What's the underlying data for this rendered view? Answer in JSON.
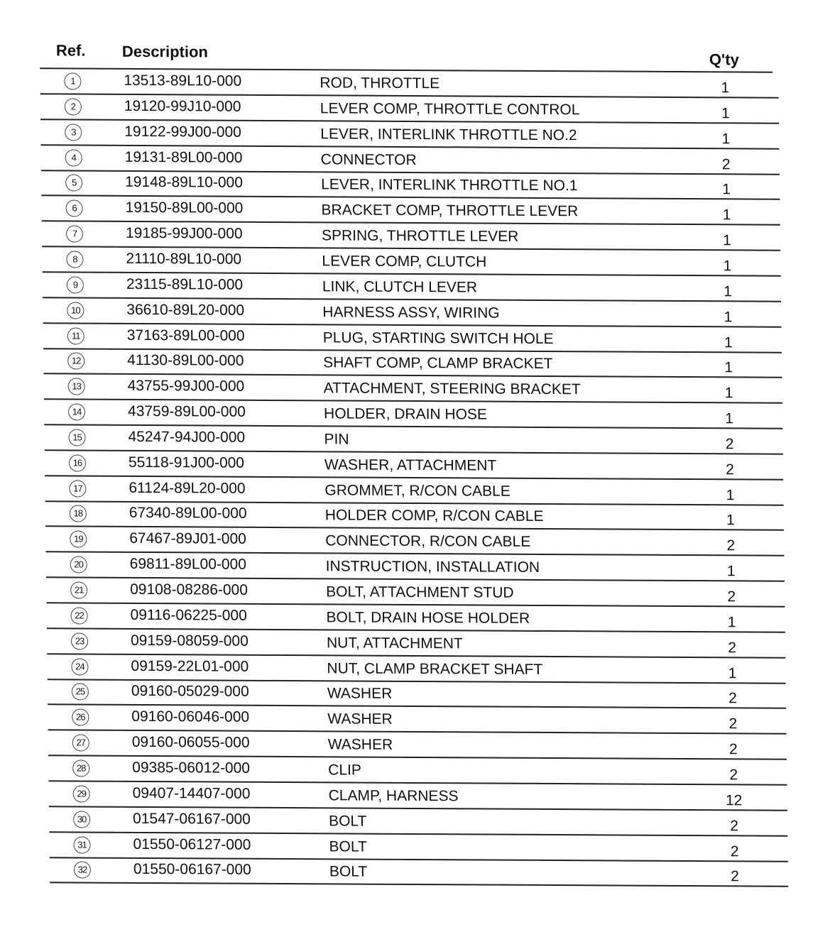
{
  "header": {
    "ref": "Ref.",
    "description": "Description",
    "qty": "Q'ty"
  },
  "rows": [
    {
      "ref": "1",
      "part": "13513-89L10-000",
      "desc": "ROD, THROTTLE",
      "qty": "1"
    },
    {
      "ref": "2",
      "part": "19120-99J10-000",
      "desc": "LEVER COMP, THROTTLE CONTROL",
      "qty": "1"
    },
    {
      "ref": "3",
      "part": "19122-99J00-000",
      "desc": "LEVER, INTERLINK THROTTLE NO.2",
      "qty": "1"
    },
    {
      "ref": "4",
      "part": "19131-89L00-000",
      "desc": "CONNECTOR",
      "qty": "2"
    },
    {
      "ref": "5",
      "part": "19148-89L10-000",
      "desc": "LEVER, INTERLINK THROTTLE NO.1",
      "qty": "1"
    },
    {
      "ref": "6",
      "part": "19150-89L00-000",
      "desc": "BRACKET COMP, THROTTLE LEVER",
      "qty": "1"
    },
    {
      "ref": "7",
      "part": "19185-99J00-000",
      "desc": "SPRING, THROTTLE LEVER",
      "qty": "1"
    },
    {
      "ref": "8",
      "part": "21110-89L10-000",
      "desc": "LEVER COMP, CLUTCH",
      "qty": "1"
    },
    {
      "ref": "9",
      "part": "23115-89L10-000",
      "desc": "LINK, CLUTCH LEVER",
      "qty": "1"
    },
    {
      "ref": "10",
      "part": "36610-89L20-000",
      "desc": "HARNESS ASSY, WIRING",
      "qty": "1"
    },
    {
      "ref": "11",
      "part": "37163-89L00-000",
      "desc": "PLUG, STARTING SWITCH HOLE",
      "qty": "1"
    },
    {
      "ref": "12",
      "part": "41130-89L00-000",
      "desc": "SHAFT COMP, CLAMP BRACKET",
      "qty": "1"
    },
    {
      "ref": "13",
      "part": "43755-99J00-000",
      "desc": "ATTACHMENT, STEERING BRACKET",
      "qty": "1"
    },
    {
      "ref": "14",
      "part": "43759-89L00-000",
      "desc": "HOLDER, DRAIN HOSE",
      "qty": "1"
    },
    {
      "ref": "15",
      "part": "45247-94J00-000",
      "desc": "PIN",
      "qty": "2"
    },
    {
      "ref": "16",
      "part": "55118-91J00-000",
      "desc": "WASHER, ATTACHMENT",
      "qty": "2"
    },
    {
      "ref": "17",
      "part": "61124-89L20-000",
      "desc": "GROMMET, R/CON CABLE",
      "qty": "1"
    },
    {
      "ref": "18",
      "part": "67340-89L00-000",
      "desc": "HOLDER COMP, R/CON CABLE",
      "qty": "1"
    },
    {
      "ref": "19",
      "part": "67467-89J01-000",
      "desc": "CONNECTOR, R/CON CABLE",
      "qty": "2"
    },
    {
      "ref": "20",
      "part": "69811-89L00-000",
      "desc": "INSTRUCTION, INSTALLATION",
      "qty": "1"
    },
    {
      "ref": "21",
      "part": "09108-08286-000",
      "desc": "BOLT, ATTACHMENT STUD",
      "qty": "2"
    },
    {
      "ref": "22",
      "part": "09116-06225-000",
      "desc": "BOLT, DRAIN HOSE HOLDER",
      "qty": "1"
    },
    {
      "ref": "23",
      "part": "09159-08059-000",
      "desc": "NUT, ATTACHMENT",
      "qty": "2"
    },
    {
      "ref": "24",
      "part": "09159-22L01-000",
      "desc": "NUT, CLAMP BRACKET SHAFT",
      "qty": "1"
    },
    {
      "ref": "25",
      "part": "09160-05029-000",
      "desc": "WASHER",
      "qty": "2"
    },
    {
      "ref": "26",
      "part": "09160-06046-000",
      "desc": "WASHER",
      "qty": "2"
    },
    {
      "ref": "27",
      "part": "09160-06055-000",
      "desc": "WASHER",
      "qty": "2"
    },
    {
      "ref": "28",
      "part": "09385-06012-000",
      "desc": "CLIP",
      "qty": "2"
    },
    {
      "ref": "29",
      "part": "09407-14407-000",
      "desc": "CLAMP, HARNESS",
      "qty": "12"
    },
    {
      "ref": "30",
      "part": "01547-06167-000",
      "desc": "BOLT",
      "qty": "2"
    },
    {
      "ref": "31",
      "part": "01550-06127-000",
      "desc": "BOLT",
      "qty": "2"
    },
    {
      "ref": "32",
      "part": "01550-06167-000",
      "desc": "BOLT",
      "qty": "2"
    }
  ]
}
